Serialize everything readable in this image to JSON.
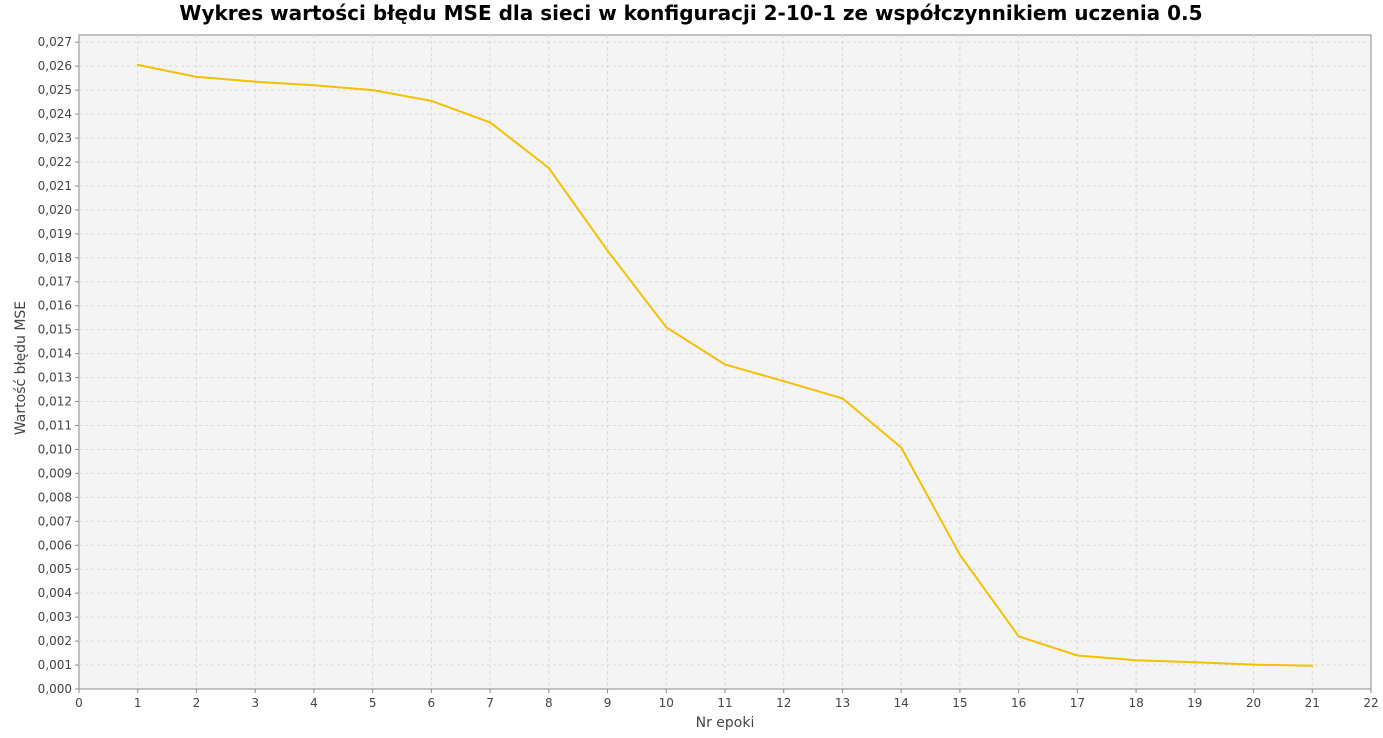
{
  "chart_data": {
    "type": "line",
    "title": "Wykres wartości błędu MSE dla sieci w konfiguracji 2-10-1 ze współczynnikiem uczenia 0.5",
    "xlabel": "Nr epoki",
    "ylabel": "Wartość błędu MSE",
    "xlim": [
      0,
      22
    ],
    "ylim": [
      0,
      0.0273
    ],
    "x_ticks": [
      "0",
      "1",
      "2",
      "3",
      "4",
      "5",
      "6",
      "7",
      "8",
      "9",
      "10",
      "11",
      "12",
      "13",
      "14",
      "15",
      "16",
      "17",
      "18",
      "19",
      "20",
      "21",
      "22"
    ],
    "y_ticks": [
      "0,000",
      "0,001",
      "0,002",
      "0,003",
      "0,004",
      "0,005",
      "0,006",
      "0,007",
      "0,008",
      "0,009",
      "0,010",
      "0,011",
      "0,012",
      "0,013",
      "0,014",
      "0,015",
      "0,016",
      "0,017",
      "0,018",
      "0,019",
      "0,020",
      "0,021",
      "0,022",
      "0,023",
      "0,024",
      "0,025",
      "0,026",
      "0,027"
    ],
    "grid": true,
    "legend": "none",
    "series": [
      {
        "color": "#f5c000",
        "x": [
          1,
          2,
          3,
          4,
          5,
          6,
          7,
          8,
          9,
          10,
          11,
          12,
          13,
          14,
          15,
          16,
          17,
          18,
          19,
          20,
          21
        ],
        "y": [
          0.02605,
          0.02555,
          0.02535,
          0.0252,
          0.025,
          0.02455,
          0.02365,
          0.02175,
          0.0183,
          0.0151,
          0.01355,
          0.01285,
          0.01213,
          0.01008,
          0.0056,
          0.0022,
          0.0014,
          0.0012,
          0.00112,
          0.00102,
          0.00097
        ]
      }
    ]
  }
}
